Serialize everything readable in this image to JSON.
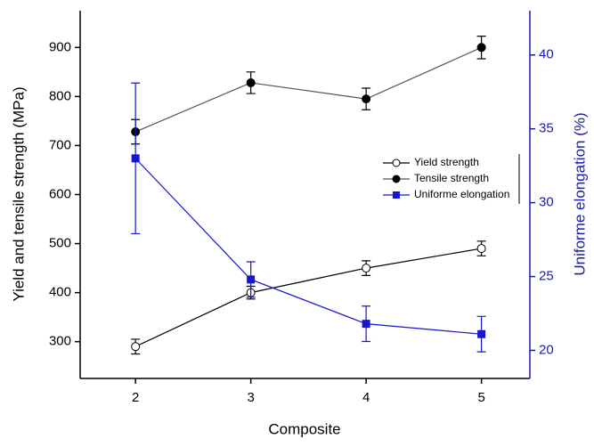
{
  "chart_data": {
    "type": "line",
    "x_label": "Composite",
    "y_label": "Yield and tensile strength (MPa)",
    "y2_label": "Uniforme elongation (%)",
    "x": [
      2,
      3,
      4,
      5
    ],
    "xlim": [
      1.52,
      5.42
    ],
    "xticks": [
      2,
      3,
      4,
      5
    ],
    "ylim": [
      225,
      975
    ],
    "yticks": [
      300,
      400,
      500,
      600,
      700,
      800,
      900
    ],
    "y2lim": [
      18.1,
      43.0
    ],
    "y2ticks": [
      20,
      25,
      30,
      35,
      40
    ],
    "y2_color": "#1a1aa8",
    "legend": "right",
    "series": [
      {
        "name": "Yield strength",
        "color": "#000000",
        "line_color": "#000000",
        "marker": "open-circle",
        "values": [
          290,
          400,
          450,
          490
        ],
        "errors": [
          15,
          13,
          15,
          15
        ]
      },
      {
        "name": "Tensile strength",
        "color": "#000000",
        "line_color": "#555555",
        "marker": "filled-circle",
        "values": [
          728,
          828,
          795,
          900
        ],
        "errors": [
          25,
          22,
          22,
          23
        ]
      },
      {
        "name": "Uniforme elongation",
        "color": "#1515d6",
        "line_color": "#1515d6",
        "marker": "square",
        "axis": "y2",
        "values": [
          33.0,
          24.8,
          21.8,
          21.1
        ],
        "errors": [
          5.1,
          1.2,
          1.2,
          1.2
        ]
      }
    ]
  }
}
